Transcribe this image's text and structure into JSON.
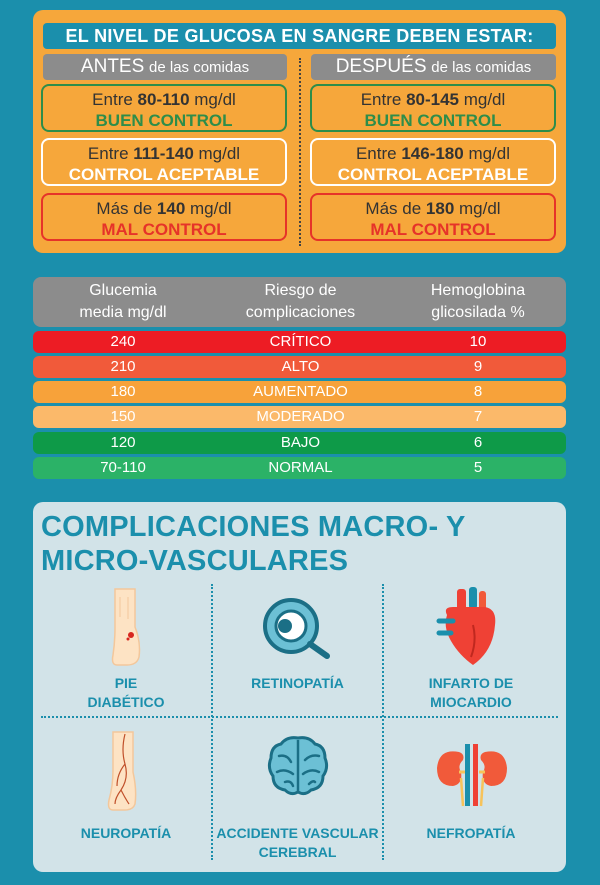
{
  "glucose": {
    "title": "EL NIVEL DE GLUCOSA EN SANGRE DEBEN ESTAR:",
    "before_head_big": "ANTES",
    "before_head_small": "de las comidas",
    "after_head_big": "DESPUÉS",
    "after_head_small": "de las comidas",
    "before": [
      {
        "prefix": "Entre ",
        "range": "80-110",
        "unit": " mg/dl",
        "status": "BUEN CONTROL"
      },
      {
        "prefix": "Entre ",
        "range": "111-140",
        "unit": " mg/dl",
        "status": "CONTROL ACEPTABLE"
      },
      {
        "prefix": "Más de ",
        "range": "140",
        "unit": " mg/dl",
        "status": "MAL CONTROL"
      }
    ],
    "after": [
      {
        "prefix": "Entre ",
        "range": "80-145",
        "unit": " mg/dl",
        "status": "BUEN CONTROL"
      },
      {
        "prefix": "Entre ",
        "range": "146-180",
        "unit": " mg/dl",
        "status": "CONTROL ACEPTABLE"
      },
      {
        "prefix": "Más de ",
        "range": "180",
        "unit": " mg/dl",
        "status": "MAL CONTROL"
      }
    ],
    "colors": {
      "good": "#2e8d4a",
      "ok": "#ffffff",
      "bad": "#e63329",
      "panel": "#f6a73b"
    }
  },
  "table": {
    "headers": {
      "col1_line1": "Glucemia",
      "col1_line2": "media mg/dl",
      "col2_line1": "Riesgo de",
      "col2_line2": "complicaciones",
      "col3_line1": "Hemoglobina",
      "col3_line2": "glicosilada %"
    },
    "rows": [
      {
        "glucose": "240",
        "risk": "CRÍTICO",
        "hba1c": "10",
        "color": "#ed1c24"
      },
      {
        "glucose": "210",
        "risk": "ALTO",
        "hba1c": "9",
        "color": "#f15a3a"
      },
      {
        "glucose": "180",
        "risk": "AUMENTADO",
        "hba1c": "8",
        "color": "#f7a23a"
      },
      {
        "glucose": "150",
        "risk": "MODERADO",
        "hba1c": "7",
        "color": "#fbb96a"
      },
      {
        "glucose": "120",
        "risk": "BAJO",
        "hba1c": "6",
        "color": "#0e9a48"
      },
      {
        "glucose": "70-110",
        "risk": "NORMAL",
        "hba1c": "5",
        "color": "#2bb267"
      }
    ]
  },
  "complications": {
    "title": "COMPLICACIONES MACRO- Y MICRO-VASCULARES",
    "items": [
      {
        "line1": "PIE",
        "line2": "DIABÉTICO",
        "icon": "foot-icon"
      },
      {
        "line1": "RETINOPATÍA",
        "line2": "",
        "icon": "eye-icon"
      },
      {
        "line1": "INFARTO DE",
        "line2": "MIOCARDIO",
        "icon": "heart-icon"
      },
      {
        "line1": "NEUROPATÍA",
        "line2": "",
        "icon": "leg-nerve-icon"
      },
      {
        "line1": "ACCIDENTE VASCULAR",
        "line2": "CEREBRAL",
        "icon": "brain-icon"
      },
      {
        "line1": "NEFROPATÍA",
        "line2": "",
        "icon": "kidneys-icon"
      }
    ],
    "colors": {
      "accent": "#1b8fac",
      "panel": "#d2e3e8"
    }
  }
}
